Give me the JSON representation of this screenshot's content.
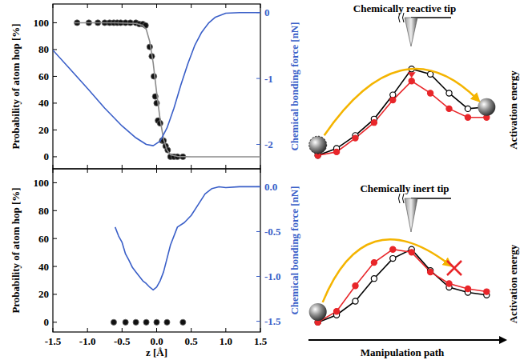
{
  "chart_data": [
    {
      "type": "scatter",
      "y_label": "Probability of atom hop [%]",
      "y2_label": "Chemical bonding force [nN]",
      "xlim": [
        -1.5,
        1.5
      ],
      "xticks": [
        -1.5,
        {
          "value": -1,
          "label": "-1.0"
        },
        -0.5,
        {
          "value": 0,
          "label": "0.0"
        },
        0.5,
        {
          "value": 1,
          "label": "1.0"
        },
        1.5
      ],
      "ylim": [
        -9,
        114
      ],
      "yticks": [
        0,
        20,
        40,
        60,
        80,
        100
      ],
      "y2lim": [
        -2.37,
        0.13
      ],
      "y2ticks": [
        -2,
        -1,
        0
      ],
      "tick_labels": "y",
      "series": [
        {
          "type": "scatter",
          "marker": "circle",
          "color": "#111111",
          "x": [
            -1.15,
            -0.98,
            -0.85,
            -0.75,
            -0.68,
            -0.62,
            -0.57,
            -0.52,
            -0.45,
            -0.38,
            -0.3,
            -0.25,
            -0.2,
            -0.16,
            -0.1,
            -0.07,
            -0.04,
            -0.02,
            0.0,
            0.02,
            0.05,
            0.08,
            0.1,
            0.13,
            0.16,
            0.2,
            0.25,
            0.3,
            0.38
          ],
          "values": [
            100,
            100,
            100,
            100,
            100,
            100,
            100,
            100,
            100,
            100,
            100,
            99,
            99,
            98,
            82,
            75,
            60,
            45,
            40,
            27,
            25,
            12,
            12,
            8,
            5,
            0,
            0,
            0,
            0
          ]
        },
        {
          "type": "line",
          "color": "#8c8c8c",
          "x": [
            -1.2,
            -0.6,
            -0.3,
            -0.2,
            -0.15,
            -0.1,
            -0.05,
            0.0,
            0.05,
            0.1,
            0.15,
            0.2,
            0.3,
            0.5,
            1.5
          ],
          "values": [
            100,
            100,
            99.5,
            98,
            95,
            86,
            70,
            48,
            28,
            13,
            5,
            1.5,
            0.2,
            0,
            0
          ]
        },
        {
          "type": "line",
          "axis": "y2",
          "color": "#3a5fc8",
          "x": [
            -1.5,
            -1.25,
            -1.0,
            -0.75,
            -0.5,
            -0.3,
            -0.15,
            -0.05,
            0.05,
            0.15,
            0.25,
            0.35,
            0.45,
            0.55,
            0.65,
            0.75,
            0.85,
            1.0,
            1.2,
            1.5
          ],
          "values": [
            -0.57,
            -0.86,
            -1.15,
            -1.45,
            -1.72,
            -1.9,
            -2.0,
            -2.02,
            -1.95,
            -1.75,
            -1.45,
            -1.1,
            -0.78,
            -0.5,
            -0.3,
            -0.16,
            -0.07,
            -0.01,
            0.0,
            0.0
          ]
        }
      ]
    },
    {
      "type": "scatter",
      "y_label": "Probability of atom hop [%]",
      "y2_label": "Chemical bonding force [nN]",
      "x_label": "z [Å]",
      "xlim": [
        -1.5,
        1.5
      ],
      "xticks": [
        -1.5,
        {
          "value": -1,
          "label": "-1.0"
        },
        -0.5,
        {
          "value": 0,
          "label": "0.0"
        },
        0.5,
        {
          "value": 1,
          "label": "1.0"
        },
        1.5
      ],
      "ylim": [
        -7,
        110
      ],
      "yticks": [
        0,
        20,
        40,
        60,
        80,
        100
      ],
      "y2lim": [
        -1.62,
        0.2
      ],
      "y2ticks": [
        -1.5,
        {
          "value": -1,
          "label": "-1.0"
        },
        -0.5,
        {
          "value": 0,
          "label": "0.0"
        }
      ],
      "series": [
        {
          "type": "scatter",
          "marker": "circle",
          "color": "#111111",
          "x": [
            -0.62,
            -0.45,
            -0.3,
            -0.15,
            0.0,
            0.15,
            0.38
          ],
          "values": [
            0,
            0,
            0,
            0,
            0,
            0,
            0
          ]
        },
        {
          "type": "line",
          "axis": "y2",
          "color": "#3a5fc8",
          "x": [
            -0.6,
            -0.55,
            -0.5,
            -0.45,
            -0.4,
            -0.35,
            -0.3,
            -0.25,
            -0.2,
            -0.15,
            -0.1,
            -0.05,
            0.0,
            0.05,
            0.1,
            0.15,
            0.2,
            0.3,
            0.4,
            0.5,
            0.6,
            0.7,
            0.8,
            0.9,
            1.0,
            1.2,
            1.5
          ],
          "values": [
            -0.45,
            -0.55,
            -0.62,
            -0.75,
            -0.82,
            -0.9,
            -0.95,
            -1.0,
            -1.05,
            -1.08,
            -1.12,
            -1.15,
            -1.12,
            -1.05,
            -0.95,
            -0.8,
            -0.65,
            -0.45,
            -0.4,
            -0.32,
            -0.2,
            -0.08,
            -0.02,
            0.0,
            -0.01,
            0.0,
            0.0
          ]
        }
      ]
    },
    {
      "type": "line",
      "title": "Chemically reactive tip",
      "y_label": "Activation energy",
      "tick_labels": false,
      "xlim": [
        -0.2,
        9.2
      ],
      "ylim": [
        -0.1,
        1.15
      ],
      "x": [
        0,
        1,
        2,
        3,
        4,
        5,
        6,
        7,
        8,
        9
      ],
      "series": [
        {
          "color": "#000000",
          "marker": "open-circle",
          "values": [
            0,
            0.08,
            0.23,
            0.42,
            0.7,
            1.0,
            0.94,
            0.72,
            0.54,
            0.56
          ]
        },
        {
          "color": "#e8262a",
          "marker": "circle",
          "values": [
            0,
            0.04,
            0.2,
            0.38,
            0.64,
            0.86,
            0.72,
            0.54,
            0.44,
            0.44
          ]
        }
      ]
    },
    {
      "type": "line",
      "title": "Chemically inert tip",
      "y_label": "Activation energy",
      "x_label": "Manipulation path",
      "tick_labels": false,
      "xlim": [
        -0.2,
        9.2
      ],
      "ylim": [
        -0.1,
        1.15
      ],
      "x": [
        0,
        1,
        2,
        3,
        4,
        5,
        6,
        7,
        8,
        9
      ],
      "series": [
        {
          "color": "#000000",
          "marker": "open-circle",
          "values": [
            0,
            0.1,
            0.29,
            0.6,
            0.875,
            1.0,
            0.71,
            0.48,
            0.41,
            0.375
          ]
        },
        {
          "color": "#e8262a",
          "marker": "circle",
          "values": [
            0,
            0.15,
            0.5,
            0.82,
            1.0,
            0.96,
            0.69,
            0.53,
            0.46,
            0.42
          ]
        }
      ]
    }
  ]
}
